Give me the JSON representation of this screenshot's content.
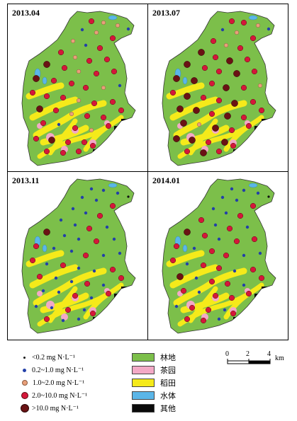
{
  "panels": [
    {
      "title": "2013.04"
    },
    {
      "title": "2013.07"
    },
    {
      "title": "2013.11"
    },
    {
      "title": "2014.01"
    }
  ],
  "legend": {
    "concentration": [
      {
        "label": "<0.2 mg N·L⁻¹",
        "color": "#111111",
        "size": 3
      },
      {
        "label": "0.2~1.0 mg N·L⁻¹",
        "color": "#2340a8",
        "size": 5
      },
      {
        "label": "1.0~2.0 mg N·L⁻¹",
        "color": "#e9a07a",
        "size": 6
      },
      {
        "label": "2.0~10.0 mg N·L⁻¹",
        "color": "#d4173a",
        "size": 8
      },
      {
        "label": ">10.0 mg N·L⁻¹",
        "color": "#6a1214",
        "size": 10
      }
    ],
    "land_use": [
      {
        "label": "林地",
        "color": "#7cbf4a"
      },
      {
        "label": "茶园",
        "color": "#f3a9c6"
      },
      {
        "label": "稻田",
        "color": "#f5ea1a"
      },
      {
        "label": "水体",
        "color": "#5bb6e8"
      },
      {
        "label": "其他",
        "color": "#0b0b0b"
      }
    ]
  },
  "scale_bar": {
    "labels": [
      "0",
      "2",
      "4"
    ],
    "unit": "km"
  },
  "colors": {
    "forest": "#7cbf4a",
    "paddy": "#f5ea1a",
    "tea": "#f3a9c6",
    "water": "#5bb6e8",
    "other": "#0b0b0b"
  },
  "samples": {
    "2013.04": [
      3,
      2,
      2,
      1,
      1,
      2,
      3,
      2,
      1,
      3,
      3,
      2,
      3,
      3,
      4,
      3,
      2,
      3,
      3,
      4,
      3,
      3,
      3,
      2,
      1,
      3,
      3,
      3,
      2,
      3,
      3,
      4,
      3,
      2,
      3,
      3,
      3,
      3,
      1,
      3,
      2,
      3,
      3,
      4,
      3,
      3,
      3,
      3,
      3,
      3
    ],
    "2013.07": [
      3,
      3,
      2,
      1,
      1,
      2,
      3,
      3,
      2,
      3,
      4,
      3,
      4,
      3,
      4,
      3,
      3,
      4,
      3,
      4,
      4,
      3,
      4,
      3,
      2,
      3,
      4,
      3,
      3,
      4,
      3,
      4,
      4,
      3,
      4,
      3,
      3,
      4,
      2,
      4,
      3,
      3,
      4,
      4,
      3,
      4,
      3,
      4,
      3,
      3
    ],
    "2013.11": [
      1,
      1,
      1,
      0,
      1,
      1,
      3,
      1,
      1,
      3,
      1,
      1,
      3,
      1,
      4,
      1,
      1,
      3,
      1,
      3,
      1,
      1,
      3,
      1,
      1,
      3,
      1,
      3,
      1,
      1,
      3,
      3,
      1,
      1,
      3,
      1,
      3,
      1,
      1,
      3,
      1,
      3,
      1,
      1,
      3,
      1,
      3,
      1,
      1,
      3
    ],
    "2014.01": [
      1,
      1,
      1,
      0,
      1,
      1,
      3,
      1,
      1,
      3,
      3,
      1,
      3,
      1,
      4,
      3,
      1,
      3,
      3,
      3,
      1,
      3,
      3,
      1,
      1,
      3,
      1,
      3,
      3,
      1,
      3,
      4,
      1,
      3,
      3,
      1,
      3,
      3,
      1,
      3,
      3,
      3,
      1,
      3,
      3,
      1,
      3,
      3,
      1,
      3
    ]
  }
}
